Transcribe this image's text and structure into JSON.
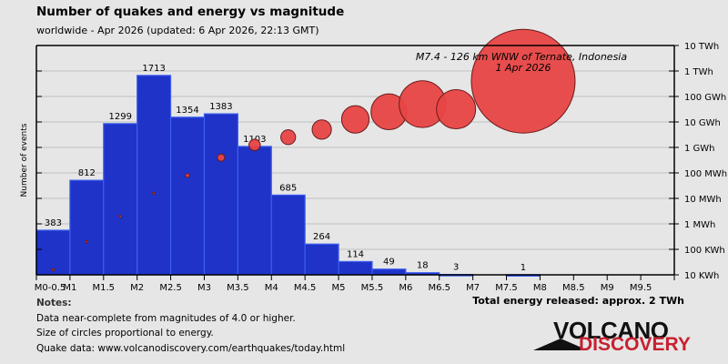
{
  "header": {
    "title": "Number of quakes and energy vs magnitude",
    "subtitle": "worldwide - Apr 2026 (updated: 6 Apr 2026, 22:13 GMT)"
  },
  "notes": {
    "heading": "Notes:",
    "lines": [
      "Data near-complete from magnitudes of 4.0 or higher.",
      "Size of circles proportional to energy.",
      "Quake data: www.volcanodiscovery.com/earthquakes/today.html"
    ]
  },
  "total_energy": "Total energy released: approx. 2 TWh",
  "logo": {
    "line1": "VOLCANO",
    "line2": "DISCOVERY"
  },
  "colors": {
    "bar": "#1f33c8",
    "bar_edge": "#3b5ef0",
    "circle": "#e84545",
    "circle_edge": "#6a1a1a",
    "grid": "#c8c8c8",
    "logo_red": "#c8202f"
  },
  "chart_data": {
    "type": "bar",
    "title": "Number of quakes and energy vs magnitude",
    "ylabel": "Number of events",
    "y2label": "Energy",
    "categories": [
      "M0-0.5",
      "M0.5-1",
      "M1-1.5",
      "M1.5-2",
      "M2-2.5",
      "M2.5-3",
      "M3-3.5",
      "M3.5-4",
      "M4-4.5",
      "M4.5-5",
      "M5-5.5",
      "M5.5-6",
      "M6-6.5",
      "M6.5-7",
      "M7-7.5",
      "M7.5-8",
      "M8-8.5",
      "M8.5-9",
      "M9-9.5"
    ],
    "xticks": [
      "M0-0.5",
      "M1",
      "M1.5",
      "M2",
      "M2.5",
      "M3",
      "M3.5",
      "M4",
      "M4.5",
      "M5",
      "M5.5",
      "M6",
      "M6.5",
      "M7",
      "M7.5",
      "M8",
      "M8.5",
      "M9",
      "M9.5"
    ],
    "series": [
      {
        "name": "Number of events",
        "values": [
          383,
          812,
          1299,
          1713,
          1354,
          1383,
          1103,
          685,
          264,
          114,
          49,
          18,
          3,
          0,
          1,
          0,
          0,
          0,
          0
        ]
      },
      {
        "name": "Energy (log10 kWh)",
        "values": [
          1.2,
          2.3,
          3.3,
          4.2,
          4.9,
          5.6,
          6.1,
          6.4,
          6.7,
          7.1,
          7.4,
          7.7,
          7.5,
          null,
          8.6,
          null,
          null,
          null,
          null
        ]
      }
    ],
    "y2ticks": [
      "10 KWh",
      "100 KWh",
      "1 MWh",
      "10 MWh",
      "100 MWh",
      "1 GWh",
      "10 GWh",
      "100 GWh",
      "1 TWh",
      "10 TWh"
    ],
    "y2lim_log10_kwh": [
      1,
      10
    ],
    "ylim": [
      0,
      1970
    ],
    "annotation": {
      "line1": "M7.4 - 126 km WNW of Ternate, Indonesia",
      "line2": "1 Apr 2026"
    }
  }
}
